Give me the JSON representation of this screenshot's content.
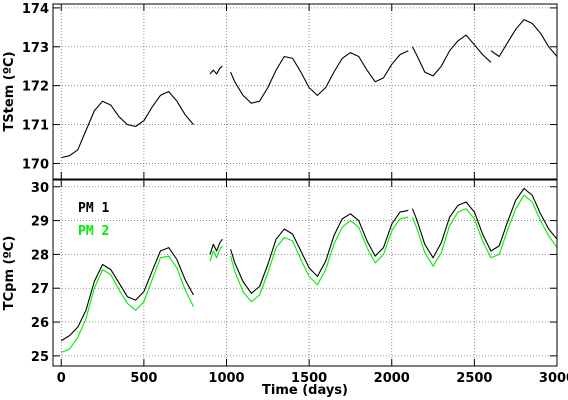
{
  "chart_data": [
    {
      "type": "line",
      "panel": "top",
      "xlabel": "",
      "ylabel": "TStem (ºC)",
      "xlim": [
        -50,
        3000
      ],
      "ylim": [
        169.6,
        174.1
      ],
      "xticks": [
        0,
        500,
        1000,
        1500,
        2000,
        2500,
        3000
      ],
      "yticks": [
        170,
        171,
        172,
        173,
        174
      ],
      "ytick_labels": [
        "170",
        "171",
        "172",
        "173",
        "174"
      ],
      "grid": true,
      "segments": [
        {
          "x": [
            0,
            50,
            100,
            150,
            200,
            250,
            300,
            350,
            400,
            450,
            500,
            550,
            600,
            650,
            700,
            750,
            800
          ],
          "y": [
            170.15,
            170.2,
            170.35,
            170.85,
            171.35,
            171.6,
            171.5,
            171.2,
            171.0,
            170.95,
            171.1,
            171.45,
            171.75,
            171.85,
            171.6,
            171.25,
            171.0
          ]
        },
        {
          "x": [
            900,
            920,
            940,
            960,
            975
          ],
          "y": [
            172.3,
            172.4,
            172.3,
            172.45,
            172.5
          ]
        },
        {
          "x": [
            1025,
            1050,
            1100,
            1150,
            1200,
            1250,
            1300,
            1350,
            1400,
            1450,
            1500,
            1550,
            1600,
            1650,
            1700,
            1750,
            1800,
            1850,
            1900,
            1950,
            2000,
            2050,
            2100
          ],
          "y": [
            172.35,
            172.1,
            171.75,
            171.55,
            171.6,
            171.95,
            172.4,
            172.75,
            172.7,
            172.35,
            171.95,
            171.75,
            171.95,
            172.35,
            172.7,
            172.85,
            172.75,
            172.4,
            172.1,
            172.2,
            172.55,
            172.8,
            172.9
          ]
        },
        {
          "x": [
            2125,
            2150,
            2200,
            2250,
            2300,
            2350,
            2400,
            2450,
            2500,
            2550,
            2600
          ],
          "y": [
            173.0,
            172.8,
            172.35,
            172.25,
            172.5,
            172.9,
            173.15,
            173.3,
            173.05,
            172.8,
            172.6
          ]
        },
        {
          "x": [
            2600,
            2650,
            2700,
            2750,
            2800,
            2850,
            2900,
            2950,
            3000
          ],
          "y": [
            172.9,
            172.75,
            173.1,
            173.45,
            173.7,
            173.6,
            173.35,
            173.0,
            172.75
          ]
        }
      ]
    },
    {
      "type": "line",
      "panel": "bottom",
      "xlabel": "Time (days)",
      "ylabel": "TCpm (ºC)",
      "xlim": [
        -50,
        3000
      ],
      "ylim": [
        24.7,
        30.2
      ],
      "xticks": [
        0,
        500,
        1000,
        1500,
        2000,
        2500,
        3000
      ],
      "xtick_labels": [
        "0",
        "500",
        "1000",
        "1500",
        "2000",
        "2500",
        "3000"
      ],
      "yticks": [
        25,
        26,
        27,
        28,
        29,
        30
      ],
      "ytick_labels": [
        "25",
        "26",
        "27",
        "28",
        "29",
        "30"
      ],
      "grid": true,
      "legend": "top-left",
      "series": [
        {
          "name": "PM 1",
          "color": "#000000",
          "segments": [
            {
              "x": [
                0,
                50,
                100,
                150,
                200,
                250,
                300,
                350,
                400,
                450,
                500,
                550,
                600,
                650,
                700,
                750,
                800
              ],
              "y": [
                25.45,
                25.6,
                25.85,
                26.35,
                27.2,
                27.7,
                27.55,
                27.15,
                26.75,
                26.65,
                26.9,
                27.5,
                28.1,
                28.2,
                27.85,
                27.25,
                26.8
              ]
            },
            {
              "x": [
                900,
                920,
                940,
                960,
                975
              ],
              "y": [
                28.0,
                28.3,
                28.1,
                28.35,
                28.45
              ]
            },
            {
              "x": [
                1025,
                1050,
                1100,
                1150,
                1200,
                1250,
                1300,
                1350,
                1400,
                1450,
                1500,
                1550,
                1600,
                1650,
                1700,
                1750,
                1800,
                1850,
                1900,
                1950,
                2000,
                2050,
                2100
              ],
              "y": [
                28.15,
                27.75,
                27.2,
                26.85,
                27.05,
                27.7,
                28.45,
                28.75,
                28.6,
                28.1,
                27.6,
                27.35,
                27.8,
                28.55,
                29.05,
                29.2,
                29.0,
                28.4,
                27.95,
                28.2,
                28.9,
                29.25,
                29.3
              ]
            },
            {
              "x": [
                2125,
                2150,
                2200,
                2250,
                2300,
                2350,
                2400,
                2450,
                2500,
                2550,
                2600,
                2650,
                2700,
                2750,
                2800,
                2850,
                2900,
                2950,
                3000
              ],
              "y": [
                29.35,
                29.05,
                28.3,
                27.9,
                28.35,
                29.1,
                29.45,
                29.55,
                29.25,
                28.6,
                28.1,
                28.25,
                28.95,
                29.6,
                29.95,
                29.75,
                29.2,
                28.75,
                28.45
              ]
            }
          ]
        },
        {
          "name": "PM 2",
          "color": "#00ee00",
          "segments": [
            {
              "x": [
                0,
                50,
                100,
                150,
                200,
                250,
                300,
                350,
                400,
                450,
                500,
                550,
                600,
                650,
                700,
                750,
                800
              ],
              "y": [
                25.1,
                25.2,
                25.55,
                26.1,
                27.0,
                27.55,
                27.4,
                26.95,
                26.55,
                26.35,
                26.6,
                27.25,
                27.9,
                27.95,
                27.6,
                26.95,
                26.45
              ]
            },
            {
              "x": [
                900,
                920,
                940,
                960,
                975
              ],
              "y": [
                27.8,
                28.1,
                27.9,
                28.15,
                28.25
              ]
            },
            {
              "x": [
                1025,
                1050,
                1100,
                1150,
                1200,
                1250,
                1300,
                1350,
                1400,
                1450,
                1500,
                1550,
                1600,
                1650,
                1700,
                1750,
                1800,
                1850,
                1900,
                1950,
                2000,
                2050,
                2100
              ],
              "y": [
                27.95,
                27.5,
                26.9,
                26.6,
                26.8,
                27.45,
                28.2,
                28.5,
                28.4,
                27.85,
                27.35,
                27.1,
                27.55,
                28.3,
                28.8,
                29.0,
                28.8,
                28.2,
                27.75,
                28.0,
                28.7,
                29.05,
                29.1
              ]
            },
            {
              "x": [
                2125,
                2150,
                2200,
                2250,
                2300,
                2350,
                2400,
                2450,
                2500,
                2550,
                2600,
                2650,
                2700,
                2750,
                2800,
                2850,
                2900,
                2950,
                3000
              ],
              "y": [
                29.1,
                28.8,
                28.05,
                27.65,
                28.05,
                28.85,
                29.25,
                29.35,
                29.05,
                28.4,
                27.9,
                28.0,
                28.7,
                29.35,
                29.75,
                29.55,
                29.0,
                28.55,
                28.2
              ]
            }
          ]
        }
      ]
    }
  ]
}
